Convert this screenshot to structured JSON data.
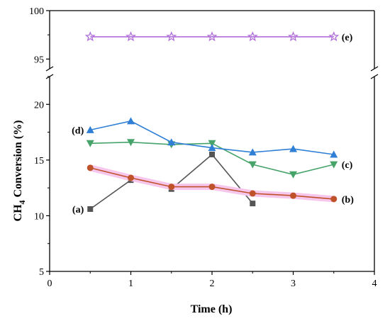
{
  "chart_data": {
    "type": "line",
    "xlabel": "Time (h)",
    "ylabel": "CH4 Conversion (%)",
    "xlim": [
      0,
      4
    ],
    "x_ticks": [
      "0",
      "1",
      "2",
      "3",
      "4"
    ],
    "y_lower_range": [
      5,
      22.5
    ],
    "y_lower_ticks": [
      "5",
      "10",
      "15",
      "20"
    ],
    "y_upper_range": [
      94,
      100
    ],
    "y_upper_ticks": [
      "95",
      "100"
    ],
    "axis_break": true,
    "grid": false,
    "legend": "none",
    "series": [
      {
        "label": "(a)",
        "color": "#555555",
        "marker": "square",
        "x": [
          0.5,
          1.0,
          1.5,
          2.0,
          2.5
        ],
        "y": [
          10.6,
          13.2,
          12.4,
          15.5,
          11.1
        ]
      },
      {
        "label": "(b)",
        "color": "#c0522a",
        "marker": "circle",
        "highlight": "#f6c6ec",
        "x": [
          0.5,
          1.0,
          1.5,
          2.0,
          2.5,
          3.0,
          3.5
        ],
        "y": [
          14.3,
          13.4,
          12.6,
          12.6,
          12.0,
          11.8,
          11.5
        ]
      },
      {
        "label": "(c)",
        "color": "#46a36a",
        "marker": "triangle-down",
        "x": [
          0.5,
          1.0,
          1.5,
          2.0,
          2.5,
          3.0,
          3.5
        ],
        "y": [
          16.5,
          16.6,
          16.4,
          16.5,
          14.6,
          13.7,
          14.6
        ]
      },
      {
        "label": "(d)",
        "color": "#2f7fd6",
        "marker": "triangle-up",
        "x": [
          0.5,
          1.0,
          1.5,
          2.0,
          2.5,
          3.0,
          3.5
        ],
        "y": [
          17.7,
          18.5,
          16.6,
          16.1,
          15.7,
          16.0,
          15.5
        ]
      },
      {
        "label": "(e)",
        "color": "#b06fd8",
        "marker": "star",
        "x": [
          0.5,
          1.0,
          1.5,
          2.0,
          2.5,
          3.0,
          3.5
        ],
        "y": [
          97.3,
          97.3,
          97.3,
          97.3,
          97.3,
          97.3,
          97.3
        ]
      }
    ]
  }
}
